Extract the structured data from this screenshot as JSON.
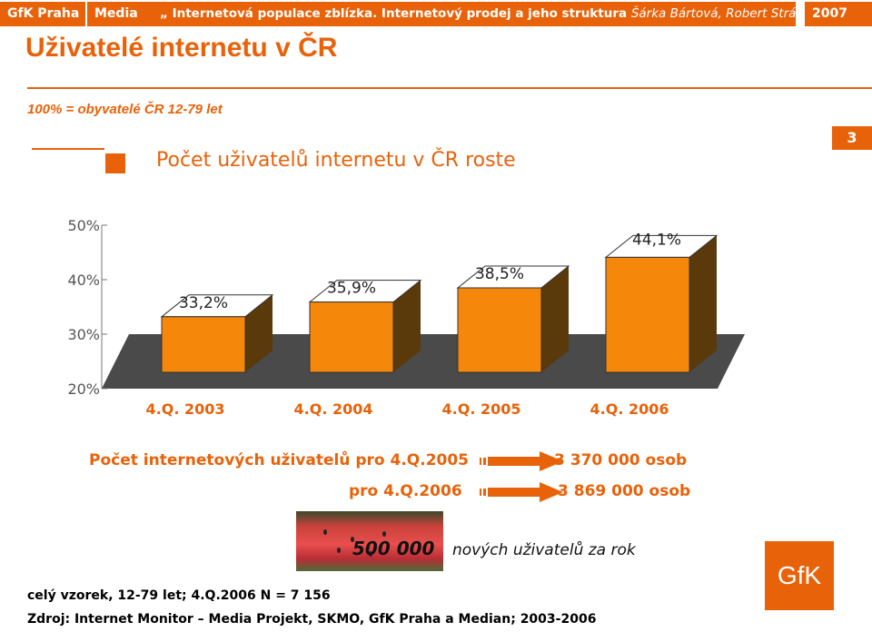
{
  "header": {
    "brand": "GfK Praha",
    "media": "Media",
    "topic_bold": "„ Internetová populace zblízka. Internetový prodej a jeho struktura",
    "authors": "Šárka Bártová, Robert Stránský",
    "year": "2007"
  },
  "title": "Uživatelé internetu v ČR",
  "base_note": "100% = obyvatelé ČR 12-79 let",
  "page_number": "3",
  "chart_title": "Počet uživatelů internetu v ČR roste",
  "chart_data": {
    "type": "bar",
    "categories": [
      "4.Q. 2003",
      "4.Q. 2004",
      "4.Q. 2005",
      "4.Q. 2006"
    ],
    "values": [
      33.2,
      35.9,
      38.5,
      44.1
    ],
    "value_labels": [
      "33,2%",
      "35,9%",
      "38,5%",
      "44,1%"
    ],
    "ylim": [
      20,
      50
    ],
    "yticks": [
      "20%",
      "30%",
      "40%",
      "50%"
    ],
    "ytick_values": [
      20,
      30,
      40,
      50
    ],
    "bar_color": "#f5880a",
    "bar_side_color": "#5a3a0a",
    "floor_color": "#4a4a4a"
  },
  "info": {
    "line1_label": "Počet internetových uživatelů pro 4.Q.2005",
    "line1_value": "3 370 000 osob",
    "line2_label": "pro 4.Q.2006",
    "line2_value": "3 869 000 osob"
  },
  "highlight": {
    "number": "500 000",
    "text": "nových uživatelů za rok"
  },
  "footer": {
    "sample": "celý vzorek, 12-79 let; 4.Q.2006 N = 7 156",
    "source": "Zdroj: Internet Monitor – Media Projekt, SKMO, GfK Praha a Median; 2003-2006"
  },
  "logo": "GfK",
  "accent_color": "#e8620a"
}
